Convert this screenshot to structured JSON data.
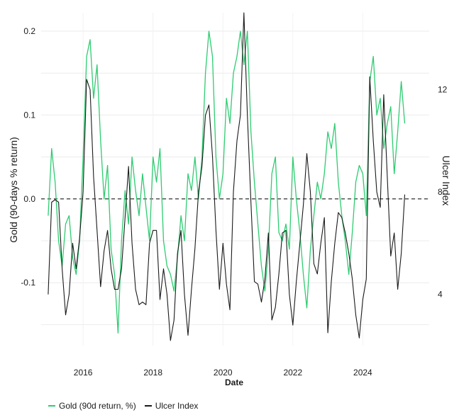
{
  "chart_data": {
    "type": "line",
    "title": "",
    "xlabel": "Date",
    "ylabel_left": "Gold (90-days % return)",
    "ylabel_right": "Ulcer Index",
    "x_ticks": [
      "2016",
      "2018",
      "2020",
      "2022",
      "2024"
    ],
    "x_tick_values": [
      2016,
      2018,
      2020,
      2022,
      2024
    ],
    "xlim": [
      2014.8,
      2025.9
    ],
    "y_left_ticks": [
      "-0.1",
      "0.0",
      "0.1",
      "0.2"
    ],
    "y_left_tick_values": [
      -0.1,
      0.0,
      0.1,
      0.2
    ],
    "ylim_left": [
      -0.175,
      0.222
    ],
    "y_right_ticks": [
      "4",
      "8",
      "12"
    ],
    "y_right_tick_values": [
      4,
      8,
      12
    ],
    "ylim_right": [
      2.0,
      15.0
    ],
    "reference_line": {
      "axis": "left",
      "value": 0.0,
      "style": "dashed"
    },
    "series": [
      {
        "name": "Gold (90d return, %)",
        "axis": "left",
        "color": "#2ecc71",
        "x": [
          2015.0,
          2015.1,
          2015.2,
          2015.3,
          2015.4,
          2015.5,
          2015.6,
          2015.7,
          2015.8,
          2015.9,
          2016.0,
          2016.1,
          2016.2,
          2016.3,
          2016.4,
          2016.5,
          2016.6,
          2016.7,
          2016.8,
          2016.9,
          2017.0,
          2017.1,
          2017.2,
          2017.3,
          2017.4,
          2017.5,
          2017.6,
          2017.7,
          2017.8,
          2017.9,
          2018.0,
          2018.1,
          2018.2,
          2018.3,
          2018.4,
          2018.5,
          2018.6,
          2018.7,
          2018.8,
          2018.9,
          2019.0,
          2019.1,
          2019.2,
          2019.3,
          2019.4,
          2019.5,
          2019.6,
          2019.7,
          2019.8,
          2019.9,
          2020.0,
          2020.1,
          2020.2,
          2020.3,
          2020.4,
          2020.5,
          2020.6,
          2020.7,
          2020.8,
          2020.9,
          2021.0,
          2021.1,
          2021.2,
          2021.3,
          2021.4,
          2021.5,
          2021.6,
          2021.7,
          2021.8,
          2021.9,
          2022.0,
          2022.1,
          2022.2,
          2022.3,
          2022.4,
          2022.5,
          2022.6,
          2022.7,
          2022.8,
          2022.9,
          2023.0,
          2023.1,
          2023.2,
          2023.3,
          2023.4,
          2023.5,
          2023.6,
          2023.7,
          2023.8,
          2023.9,
          2024.0,
          2024.1,
          2024.2,
          2024.3,
          2024.4,
          2024.5,
          2024.6,
          2024.7,
          2024.8,
          2024.9,
          2025.0,
          2025.1,
          2025.2
        ],
        "values": [
          -0.02,
          0.06,
          0.02,
          -0.05,
          -0.08,
          -0.03,
          -0.02,
          -0.07,
          -0.09,
          -0.05,
          0.05,
          0.17,
          0.19,
          0.12,
          0.16,
          0.07,
          0.0,
          0.04,
          -0.06,
          -0.09,
          -0.16,
          -0.05,
          0.01,
          -0.03,
          0.05,
          0.01,
          -0.02,
          0.03,
          -0.01,
          -0.05,
          0.05,
          0.02,
          0.06,
          -0.05,
          -0.08,
          -0.09,
          -0.11,
          -0.07,
          -0.02,
          -0.05,
          0.03,
          0.01,
          0.05,
          0.0,
          0.05,
          0.15,
          0.2,
          0.17,
          0.05,
          0.0,
          0.03,
          0.12,
          0.09,
          0.15,
          0.17,
          0.2,
          0.16,
          0.2,
          0.08,
          0.02,
          -0.03,
          -0.08,
          -0.11,
          -0.06,
          0.03,
          0.05,
          -0.04,
          -0.05,
          -0.03,
          -0.06,
          0.05,
          0.0,
          -0.04,
          -0.09,
          -0.13,
          -0.06,
          -0.02,
          0.02,
          0.0,
          0.03,
          0.08,
          0.06,
          0.09,
          0.02,
          -0.02,
          -0.05,
          -0.09,
          -0.04,
          0.02,
          0.04,
          0.03,
          -0.02,
          0.14,
          0.17,
          0.1,
          0.12,
          0.06,
          0.09,
          0.11,
          0.03,
          0.08,
          0.14,
          0.09
        ]
      },
      {
        "name": "Ulcer Index",
        "axis": "right",
        "color": "#1a1a1a",
        "x": [
          2015.0,
          2015.1,
          2015.2,
          2015.3,
          2015.4,
          2015.5,
          2015.6,
          2015.7,
          2015.8,
          2015.9,
          2016.0,
          2016.1,
          2016.2,
          2016.3,
          2016.4,
          2016.5,
          2016.6,
          2016.7,
          2016.8,
          2016.9,
          2017.0,
          2017.1,
          2017.2,
          2017.3,
          2017.4,
          2017.5,
          2017.6,
          2017.7,
          2017.8,
          2017.9,
          2018.0,
          2018.1,
          2018.2,
          2018.3,
          2018.4,
          2018.5,
          2018.6,
          2018.7,
          2018.8,
          2018.9,
          2019.0,
          2019.1,
          2019.2,
          2019.3,
          2019.4,
          2019.5,
          2019.6,
          2019.7,
          2019.8,
          2019.9,
          2020.0,
          2020.1,
          2020.2,
          2020.3,
          2020.4,
          2020.5,
          2020.6,
          2020.7,
          2020.8,
          2020.9,
          2021.0,
          2021.1,
          2021.2,
          2021.3,
          2021.4,
          2021.5,
          2021.6,
          2021.7,
          2021.8,
          2021.9,
          2022.0,
          2022.1,
          2022.2,
          2022.3,
          2022.4,
          2022.5,
          2022.6,
          2022.7,
          2022.8,
          2022.9,
          2023.0,
          2023.1,
          2023.2,
          2023.3,
          2023.4,
          2023.5,
          2023.6,
          2023.7,
          2023.8,
          2023.9,
          2024.0,
          2024.1,
          2024.2,
          2024.3,
          2024.4,
          2024.5,
          2024.6,
          2024.7,
          2024.8,
          2024.9,
          2025.0,
          2025.1,
          2025.2
        ],
        "values": [
          4.0,
          7.6,
          7.7,
          7.6,
          5.0,
          3.2,
          4.0,
          6.0,
          5.0,
          6.2,
          8.0,
          12.4,
          12.0,
          8.6,
          6.5,
          4.3,
          5.7,
          6.5,
          5.0,
          4.2,
          4.2,
          5.0,
          7.0,
          9.0,
          6.0,
          4.2,
          3.6,
          3.7,
          3.6,
          6.0,
          6.5,
          6.5,
          3.8,
          5.0,
          4.0,
          2.2,
          3.0,
          5.6,
          6.5,
          4.0,
          2.4,
          4.2,
          5.8,
          8.0,
          9.0,
          11.0,
          11.4,
          9.4,
          6.5,
          4.2,
          6.0,
          4.4,
          3.4,
          8.0,
          10.0,
          11.0,
          15.0,
          11.0,
          7.6,
          4.5,
          4.4,
          3.7,
          4.6,
          6.4,
          3.0,
          3.5,
          4.8,
          6.4,
          6.5,
          4.0,
          2.8,
          4.5,
          6.0,
          7.5,
          9.5,
          8.0,
          5.2,
          4.8,
          6.0,
          7.0,
          2.5,
          4.5,
          6.0,
          7.2,
          7.0,
          6.4,
          5.6,
          4.6,
          3.2,
          2.3,
          3.8,
          4.6,
          12.5,
          10.0,
          8.0,
          7.4,
          11.8,
          8.6,
          5.5,
          6.4,
          4.2,
          5.6,
          7.9
        ]
      }
    ],
    "legend": {
      "position": "bottom-left"
    }
  }
}
